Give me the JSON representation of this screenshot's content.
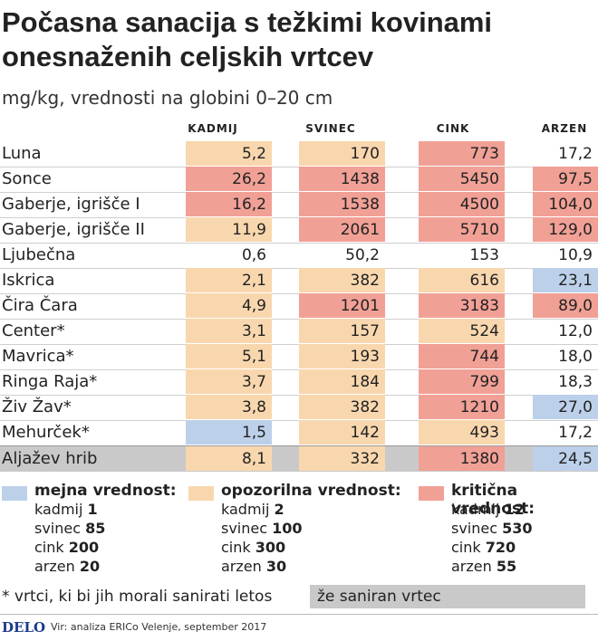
{
  "title": "Počasna sanacija s težkimi kovinami onesnaženih celjskih vrtcev",
  "subtitle": "mg/kg, vrednosti na globini 0–20 cm",
  "chart_data": {
    "type": "table",
    "columns": [
      "KADMIJ",
      "SVINEC",
      "CINK",
      "ARZEN"
    ],
    "rows": [
      {
        "name": "Luna",
        "values": [
          "5,2",
          "170",
          "773",
          "17,2"
        ],
        "levels": [
          2,
          2,
          3,
          0
        ]
      },
      {
        "name": "Sonce",
        "values": [
          "26,2",
          "1438",
          "5450",
          "97,5"
        ],
        "levels": [
          3,
          3,
          3,
          3
        ]
      },
      {
        "name": "Gaberje, igrišče I",
        "values": [
          "16,2",
          "1538",
          "4500",
          "104,0"
        ],
        "levels": [
          3,
          3,
          3,
          3
        ]
      },
      {
        "name": "Gaberje, igrišče II",
        "values": [
          "11,9",
          "2061",
          "5710",
          "129,0"
        ],
        "levels": [
          2,
          3,
          3,
          3
        ]
      },
      {
        "name": "Ljubečna",
        "values": [
          "0,6",
          "50,2",
          "153",
          "10,9"
        ],
        "levels": [
          0,
          0,
          0,
          0
        ]
      },
      {
        "name": "Iskrica",
        "values": [
          "2,1",
          "382",
          "616",
          "23,1"
        ],
        "levels": [
          2,
          2,
          2,
          1
        ]
      },
      {
        "name": "Čira Čara",
        "values": [
          "4,9",
          "1201",
          "3183",
          "89,0"
        ],
        "levels": [
          2,
          3,
          3,
          3
        ]
      },
      {
        "name": "Center*",
        "values": [
          "3,1",
          "157",
          "524",
          "12,0"
        ],
        "levels": [
          2,
          2,
          2,
          0
        ]
      },
      {
        "name": "Mavrica*",
        "values": [
          "5,1",
          "193",
          "744",
          "18,0"
        ],
        "levels": [
          2,
          2,
          3,
          0
        ]
      },
      {
        "name": "Ringa Raja*",
        "values": [
          "3,7",
          "184",
          "799",
          "18,3"
        ],
        "levels": [
          2,
          2,
          3,
          0
        ]
      },
      {
        "name": "Živ Žav*",
        "values": [
          "3,8",
          "382",
          "1210",
          "27,0"
        ],
        "levels": [
          2,
          2,
          3,
          1
        ]
      },
      {
        "name": "Mehurček*",
        "values": [
          "1,5",
          "142",
          "493",
          "17,2"
        ],
        "levels": [
          1,
          2,
          2,
          0
        ]
      },
      {
        "name": "Aljažev hrib",
        "values": [
          "8,1",
          "332",
          "1380",
          "24,5"
        ],
        "levels": [
          2,
          2,
          3,
          1
        ]
      }
    ],
    "level_colors": [
      "#ffffff",
      "#bcd0ea",
      "#f9d7ae",
      "#f1a096"
    ]
  },
  "legend": [
    {
      "title": "mejna vrednost:",
      "color": "#bcd0ea",
      "items": [
        {
          "name": "kadmij",
          "value": "1"
        },
        {
          "name": "svinec",
          "value": "85"
        },
        {
          "name": "cink",
          "value": "200"
        },
        {
          "name": "arzen",
          "value": "20"
        }
      ]
    },
    {
      "title": "opozorilna vrednost:",
      "color": "#f9d7ae",
      "items": [
        {
          "name": "kadmij",
          "value": "2"
        },
        {
          "name": "svinec",
          "value": "100"
        },
        {
          "name": "cink",
          "value": "300"
        },
        {
          "name": "arzen",
          "value": "30"
        }
      ]
    },
    {
      "title": "kritična vrednost:",
      "color": "#f1a096",
      "items": [
        {
          "name": "kadmij",
          "value": "12"
        },
        {
          "name": "svinec",
          "value": "530"
        },
        {
          "name": "cink",
          "value": "720"
        },
        {
          "name": "arzen",
          "value": "55"
        }
      ]
    }
  ],
  "footnote": "* vrtci, ki bi jih morali sanirati letos",
  "saniran": "že saniran vrtec",
  "logo": "DELO",
  "source": "Vir: analiza ERICo Velenje, september 2017"
}
